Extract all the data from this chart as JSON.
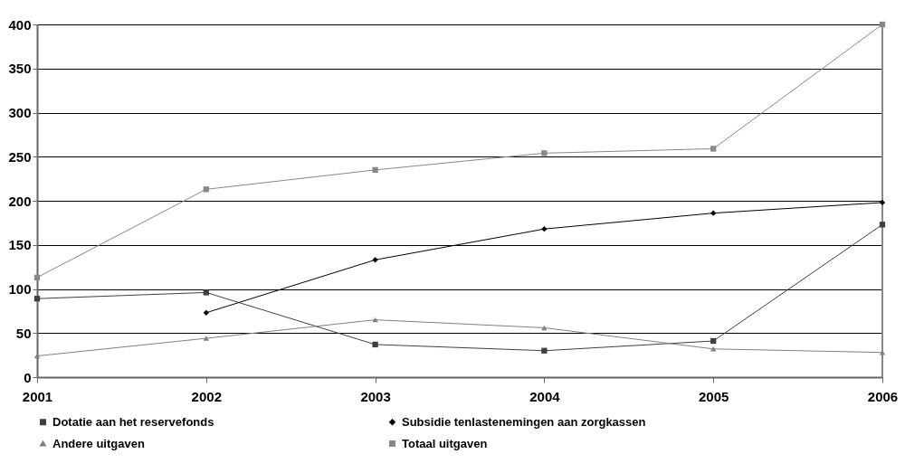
{
  "chart_data": {
    "type": "line",
    "categories": [
      "2001",
      "2002",
      "2003",
      "2004",
      "2005",
      "2006"
    ],
    "series": [
      {
        "name": "Dotatie aan het reservefonds",
        "color": "#404040",
        "marker": "square",
        "values": [
          89,
          96,
          37,
          30,
          41,
          173
        ]
      },
      {
        "name": "Subsidie tenlastenemingen aan zorgkassen",
        "color": "#000000",
        "marker": "diamond",
        "values": [
          null,
          73,
          133,
          168,
          186,
          198
        ]
      },
      {
        "name": "Andere uitgaven",
        "color": "#808080",
        "marker": "triangle",
        "values": [
          24,
          44,
          65,
          56,
          32,
          28
        ]
      },
      {
        "name": "Totaal uitgaven",
        "color": "#888888",
        "marker": "square",
        "values": [
          113,
          213,
          235,
          254,
          259,
          400
        ]
      }
    ],
    "ylim": [
      0,
      400
    ],
    "yticks": [
      0,
      50,
      100,
      150,
      200,
      250,
      300,
      350,
      400
    ],
    "grid": "y",
    "legend": "bottom"
  }
}
